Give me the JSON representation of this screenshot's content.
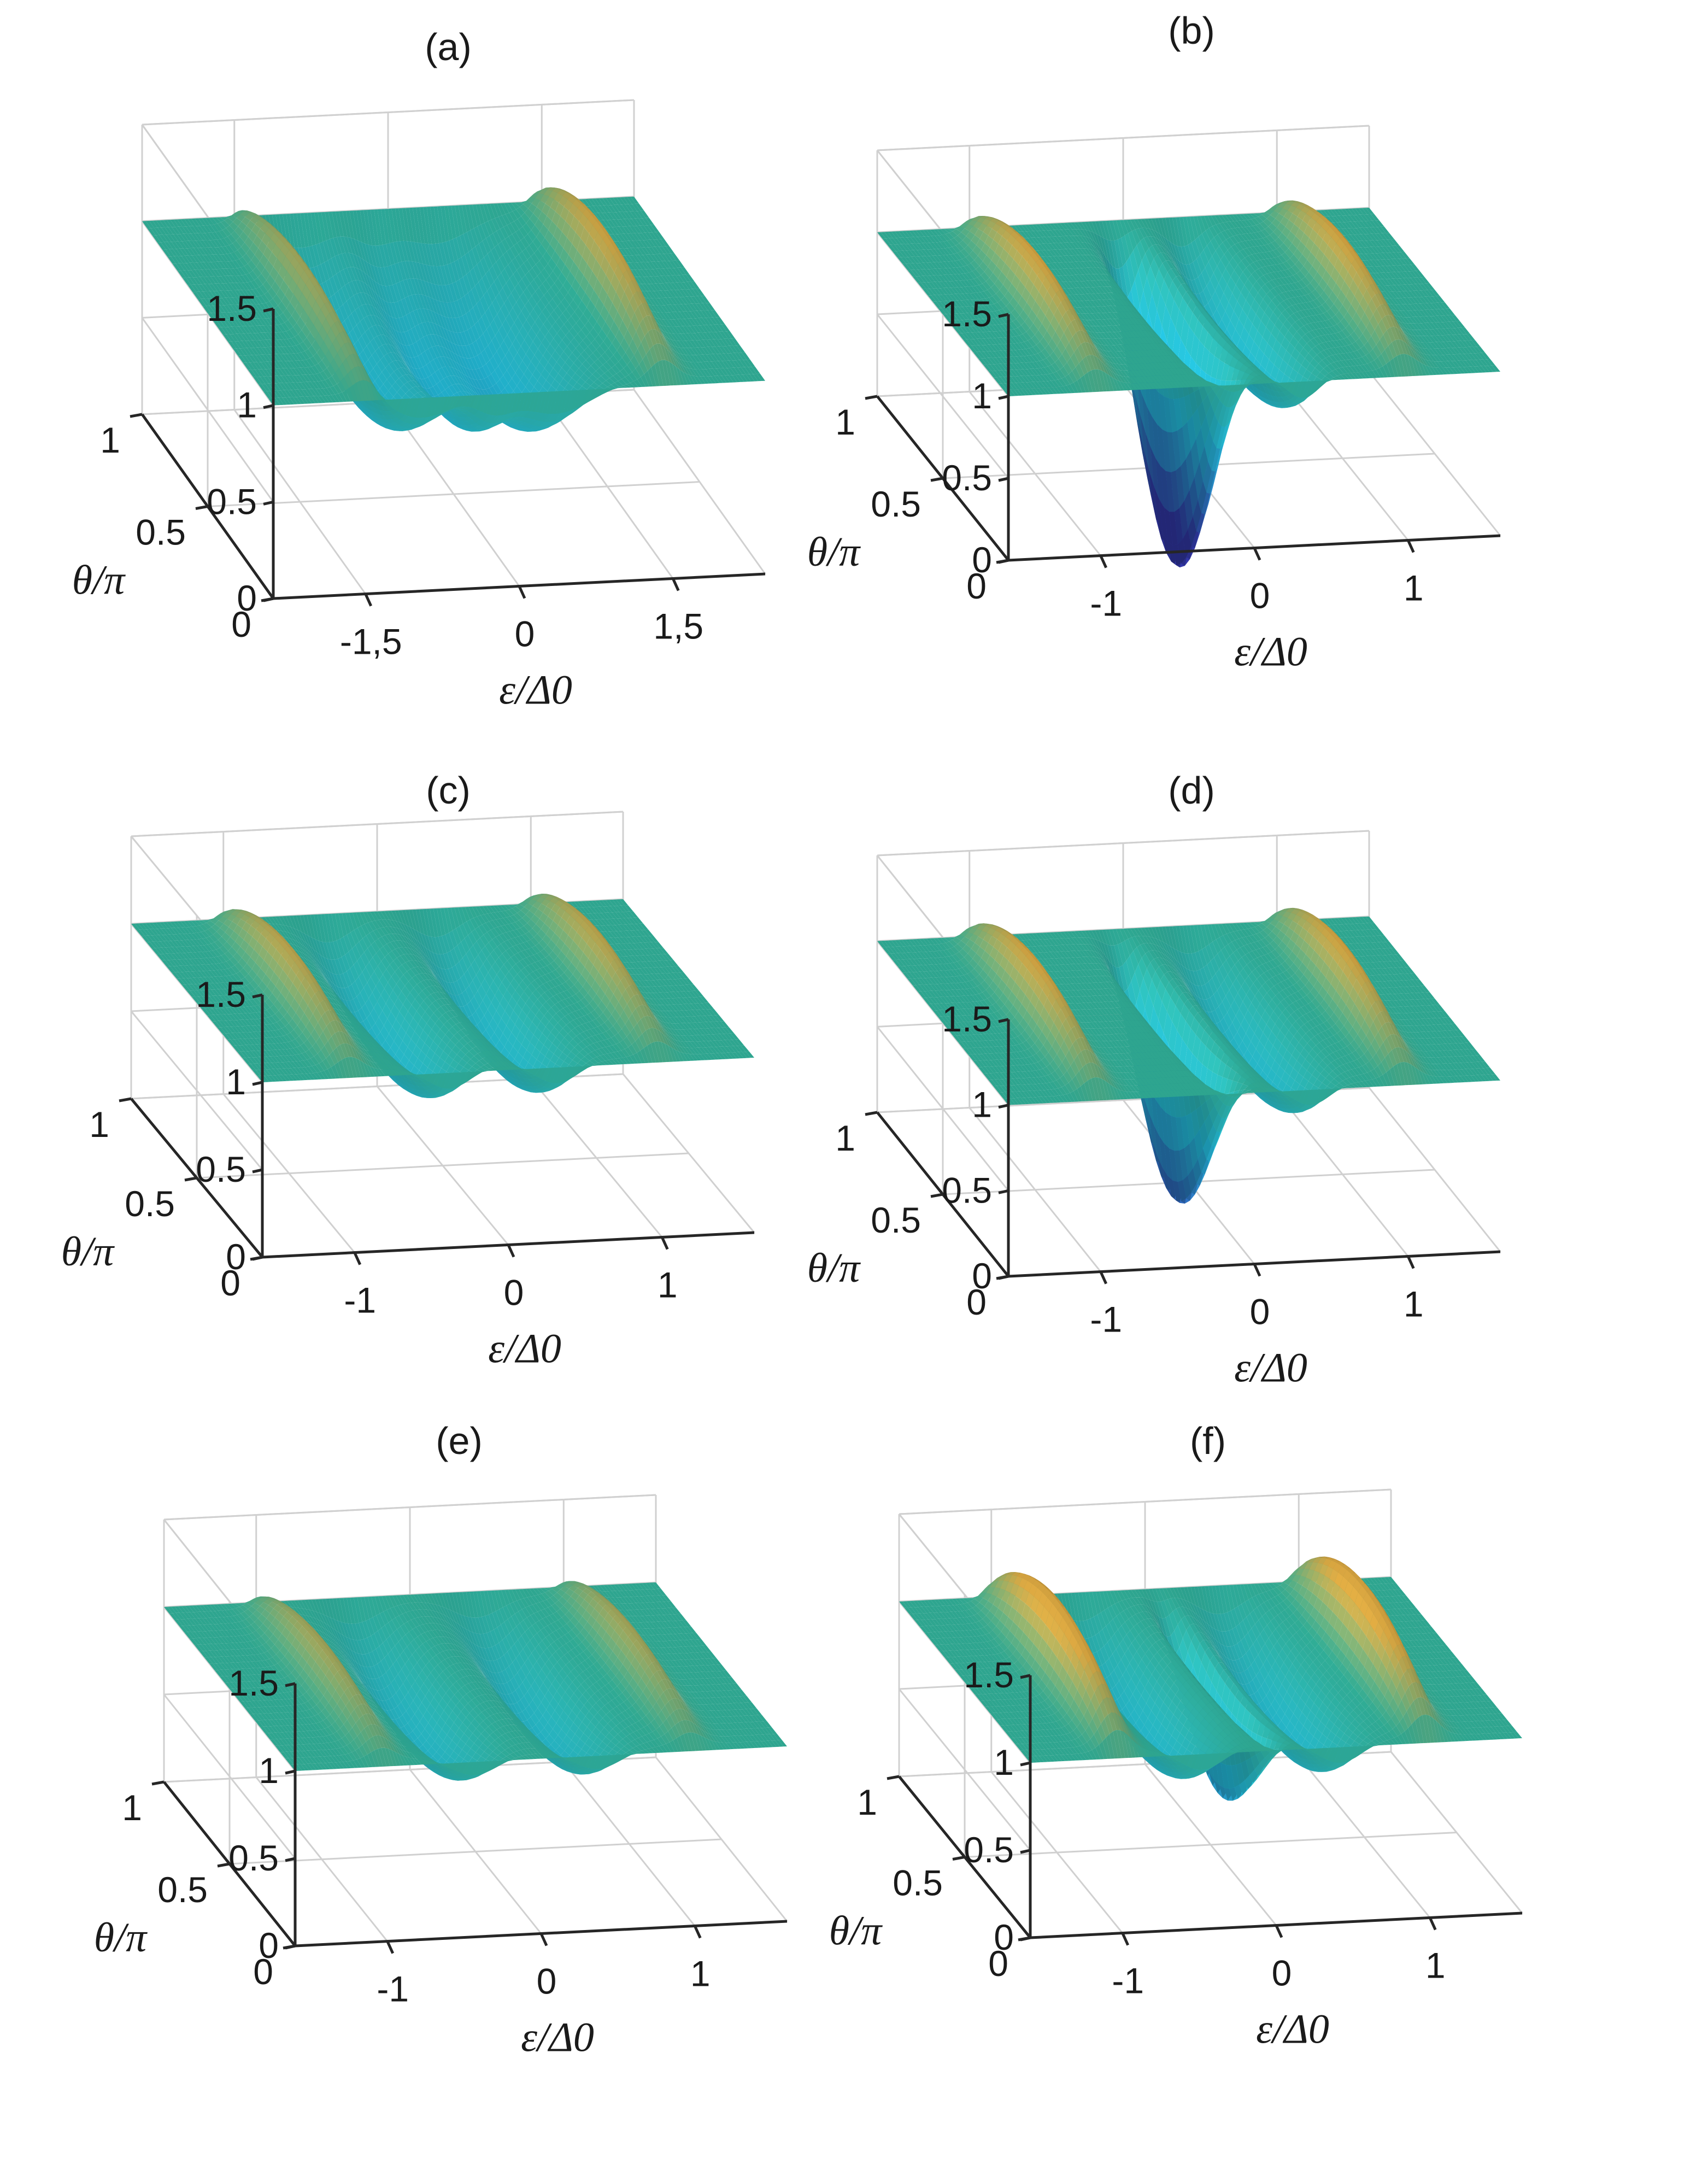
{
  "figure": {
    "panels": [
      {
        "label": "(a)"
      },
      {
        "label": "(b)"
      },
      {
        "label": "(c)"
      },
      {
        "label": "(d)"
      },
      {
        "label": "(e)"
      },
      {
        "label": "(f)"
      }
    ]
  },
  "colors": {
    "flat": "#2ea58f",
    "peak": "#c99a3c",
    "valley": "#20aac5",
    "deep": "#2b2f8f",
    "axis": "#262626",
    "grid": "#d0d0d0"
  },
  "chart_data": [
    {
      "type": "surface",
      "title": "(a)",
      "xlabel": "ε/Δ0",
      "ylabel": "θ/π",
      "zlabel": "",
      "xlim": [
        -2.4,
        2.4
      ],
      "ylim": [
        0,
        1
      ],
      "zlim": [
        0,
        1.5
      ],
      "xticks": [
        -1.5,
        0,
        1.5
      ],
      "xtick_labels": [
        "-1,5",
        "0",
        "1,5"
      ],
      "yticks": [
        0,
        0.5,
        1
      ],
      "ytick_labels": [
        "0",
        "0.5",
        "1"
      ],
      "zticks": [
        0,
        0.5,
        1,
        1.5
      ],
      "ztick_labels": [
        "0",
        "0.5",
        "1",
        "1.5"
      ],
      "grid": true,
      "surface_features": [
        {
          "kind": "edge-peak",
          "eps": -1.45,
          "width": 0.18,
          "height": 0.35
        },
        {
          "kind": "edge-peak",
          "eps": 1.45,
          "width": 0.18,
          "height": 0.35
        },
        {
          "kind": "valley",
          "eps": -0.9,
          "width": 0.45,
          "depth": 0.5
        },
        {
          "kind": "valley",
          "eps": 0.4,
          "width": 0.5,
          "depth": 0.55
        },
        {
          "kind": "valley",
          "eps": -0.2,
          "width": 0.25,
          "depth": 0.35
        }
      ]
    },
    {
      "type": "surface",
      "title": "(b)",
      "xlabel": "ε/Δ0",
      "ylabel": "θ/π",
      "zlabel": "",
      "xlim": [
        -1.6,
        1.6
      ],
      "ylim": [
        0,
        1
      ],
      "zlim": [
        0,
        1.5
      ],
      "xticks": [
        -1,
        0,
        1
      ],
      "xtick_labels": [
        "-1",
        "0",
        "1"
      ],
      "yticks": [
        0,
        0.5,
        1
      ],
      "ytick_labels": [
        "0",
        "0.5",
        "1"
      ],
      "zticks": [
        0,
        0.5,
        1,
        1.5
      ],
      "ztick_labels": [
        "0",
        "0.5",
        "1",
        "1.5"
      ],
      "grid": true,
      "surface_features": [
        {
          "kind": "edge-peak",
          "eps": -1.0,
          "width": 0.12,
          "height": 0.35
        },
        {
          "kind": "edge-peak",
          "eps": 1.0,
          "width": 0.12,
          "height": 0.35
        },
        {
          "kind": "deep-well",
          "eps": -0.1,
          "width": 0.12,
          "depth": 1.6
        },
        {
          "kind": "valley",
          "eps": 0.35,
          "width": 0.15,
          "depth": 0.5
        }
      ]
    },
    {
      "type": "surface",
      "title": "(c)",
      "xlabel": "ε/Δ0",
      "ylabel": "θ/π",
      "zlabel": "",
      "xlim": [
        -1.6,
        1.6
      ],
      "ylim": [
        0,
        1
      ],
      "zlim": [
        0,
        1.5
      ],
      "xticks": [
        -1,
        0,
        1
      ],
      "xtick_labels": [
        "-1",
        "0",
        "1"
      ],
      "yticks": [
        0,
        0.5,
        1
      ],
      "ytick_labels": [
        "0",
        "0.5",
        "1"
      ],
      "zticks": [
        0,
        0.5,
        1,
        1.5
      ],
      "ztick_labels": [
        "0",
        "0.5",
        "1",
        "1.5"
      ],
      "grid": true,
      "surface_features": [
        {
          "kind": "edge-peak",
          "eps": -1.0,
          "width": 0.12,
          "height": 0.3
        },
        {
          "kind": "edge-peak",
          "eps": 1.0,
          "width": 0.12,
          "height": 0.3
        },
        {
          "kind": "valley",
          "eps": -0.35,
          "width": 0.2,
          "depth": 0.45
        },
        {
          "kind": "valley",
          "eps": 0.35,
          "width": 0.2,
          "depth": 0.45
        }
      ]
    },
    {
      "type": "surface",
      "title": "(d)",
      "xlabel": "ε/Δ0",
      "ylabel": "θ/π",
      "zlabel": "",
      "xlim": [
        -1.6,
        1.6
      ],
      "ylim": [
        0,
        1
      ],
      "zlim": [
        0,
        1.5
      ],
      "xticks": [
        -1,
        0,
        1
      ],
      "xtick_labels": [
        "-1",
        "0",
        "1"
      ],
      "yticks": [
        0,
        0.5,
        1
      ],
      "ytick_labels": [
        "0",
        "0.5",
        "1"
      ],
      "zticks": [
        0,
        0.5,
        1,
        1.5
      ],
      "ztick_labels": [
        "0",
        "0.5",
        "1",
        "1.5"
      ],
      "grid": true,
      "surface_features": [
        {
          "kind": "edge-peak",
          "eps": -1.0,
          "width": 0.12,
          "height": 0.35
        },
        {
          "kind": "edge-peak",
          "eps": 1.0,
          "width": 0.12,
          "height": 0.35
        },
        {
          "kind": "deep-well",
          "eps": -0.1,
          "width": 0.1,
          "depth": 1.1
        },
        {
          "kind": "valley",
          "eps": 0.4,
          "width": 0.18,
          "depth": 0.45
        }
      ]
    },
    {
      "type": "surface",
      "title": "(e)",
      "xlabel": "ε/Δ0",
      "ylabel": "θ/π",
      "zlabel": "",
      "xlim": [
        -1.6,
        1.6
      ],
      "ylim": [
        0,
        1
      ],
      "zlim": [
        0,
        1.5
      ],
      "xticks": [
        -1,
        0,
        1
      ],
      "xtick_labels": [
        "-1",
        "0",
        "1"
      ],
      "yticks": [
        0,
        0.5,
        1
      ],
      "ytick_labels": [
        "0",
        "0.5",
        "1"
      ],
      "zticks": [
        0,
        0.5,
        1,
        1.5
      ],
      "ztick_labels": [
        "0",
        "0.5",
        "1",
        "1.5"
      ],
      "grid": true,
      "surface_features": [
        {
          "kind": "edge-peak",
          "eps": -1.0,
          "width": 0.12,
          "height": 0.25
        },
        {
          "kind": "edge-peak",
          "eps": 1.0,
          "width": 0.12,
          "height": 0.25
        },
        {
          "kind": "valley",
          "eps": -0.4,
          "width": 0.22,
          "depth": 0.4
        },
        {
          "kind": "valley",
          "eps": 0.4,
          "width": 0.22,
          "depth": 0.4
        }
      ]
    },
    {
      "type": "surface",
      "title": "(f)",
      "xlabel": "ε/Δ0",
      "ylabel": "θ/π",
      "zlabel": "",
      "xlim": [
        -1.6,
        1.6
      ],
      "ylim": [
        0,
        1
      ],
      "zlim": [
        0,
        1.5
      ],
      "xticks": [
        -1,
        0,
        1
      ],
      "xtick_labels": [
        "-1",
        "0",
        "1"
      ],
      "yticks": [
        0,
        0.5,
        1
      ],
      "ytick_labels": [
        "0",
        "0.5",
        "1"
      ],
      "zticks": [
        0,
        0.5,
        1,
        1.5
      ],
      "ztick_labels": [
        "0",
        "0.5",
        "1",
        "1.5"
      ],
      "grid": true,
      "surface_features": [
        {
          "kind": "edge-peak",
          "eps": -1.0,
          "width": 0.12,
          "height": 0.45
        },
        {
          "kind": "edge-peak",
          "eps": 1.0,
          "width": 0.12,
          "height": 0.45
        },
        {
          "kind": "valley",
          "eps": -0.45,
          "width": 0.2,
          "depth": 0.45
        },
        {
          "kind": "deep-well",
          "eps": 0.05,
          "width": 0.08,
          "depth": 0.7
        },
        {
          "kind": "valley",
          "eps": 0.45,
          "width": 0.2,
          "depth": 0.45
        }
      ]
    }
  ]
}
